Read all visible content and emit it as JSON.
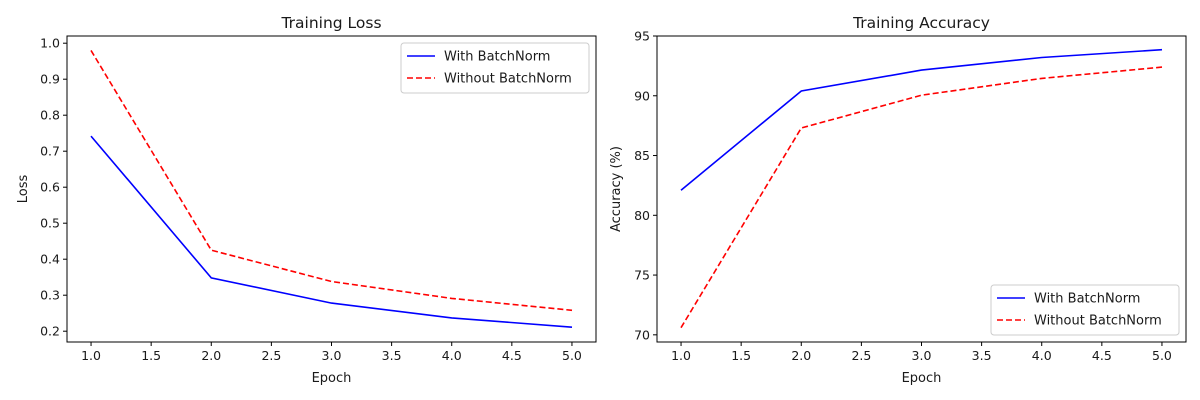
{
  "chart_data": [
    {
      "type": "line",
      "title": "Training Loss",
      "xlabel": "Epoch",
      "ylabel": "Loss",
      "x": [
        1,
        2,
        3,
        4,
        5
      ],
      "xlim": [
        0.8,
        5.2
      ],
      "ylim": [
        0.17,
        1.02
      ],
      "xticks": [
        "1.0",
        "1.5",
        "2.0",
        "2.5",
        "3.0",
        "3.5",
        "4.0",
        "4.5",
        "5.0"
      ],
      "yticks": [
        "0.2",
        "0.3",
        "0.4",
        "0.5",
        "0.6",
        "0.7",
        "0.8",
        "0.9",
        "1.0"
      ],
      "grid": false,
      "legend_position": "upper right",
      "series": [
        {
          "name": "With BatchNorm",
          "values": [
            0.742,
            0.348,
            0.278,
            0.237,
            0.211
          ],
          "color": "#0000ff",
          "style": "solid"
        },
        {
          "name": "Without BatchNorm",
          "values": [
            0.98,
            0.425,
            0.338,
            0.291,
            0.258
          ],
          "color": "#ff0000",
          "style": "dashed"
        }
      ]
    },
    {
      "type": "line",
      "title": "Training Accuracy",
      "xlabel": "Epoch",
      "ylabel": "Accuracy (%)",
      "x": [
        1,
        2,
        3,
        4,
        5
      ],
      "xlim": [
        0.8,
        5.2
      ],
      "ylim": [
        69.4,
        95
      ],
      "xticks": [
        "1.0",
        "1.5",
        "2.0",
        "2.5",
        "3.0",
        "3.5",
        "4.0",
        "4.5",
        "5.0"
      ],
      "yticks": [
        "70",
        "75",
        "80",
        "85",
        "90",
        "95"
      ],
      "grid": false,
      "legend_position": "lower right",
      "series": [
        {
          "name": "With BatchNorm",
          "values": [
            82.1,
            90.4,
            92.15,
            93.2,
            93.85
          ],
          "color": "#0000ff",
          "style": "solid"
        },
        {
          "name": "Without BatchNorm",
          "values": [
            70.6,
            87.3,
            90.05,
            91.45,
            92.4
          ],
          "color": "#ff0000",
          "style": "dashed"
        }
      ]
    }
  ]
}
